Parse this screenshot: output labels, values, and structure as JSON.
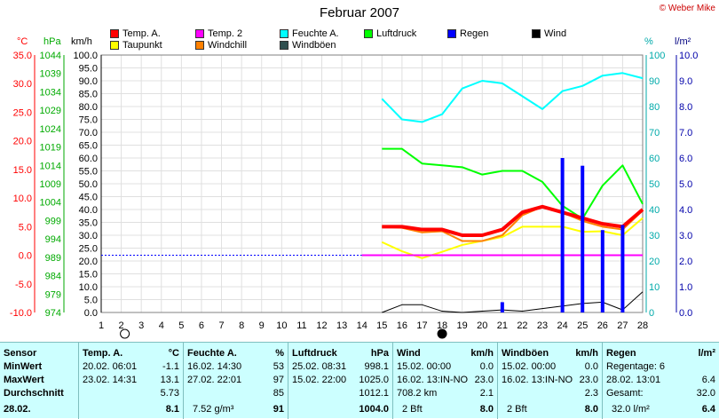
{
  "title": "Februar 2007",
  "copyright": "© Weber Mike",
  "legend": [
    {
      "label": "Temp. A.",
      "color": "#ff0000"
    },
    {
      "label": "Taupunkt",
      "color": "#ffff00"
    },
    {
      "label": "Temp. 2",
      "color": "#ff00ff"
    },
    {
      "label": "Windchill",
      "color": "#ff8000"
    },
    {
      "label": "Feuchte A.",
      "color": "#00ffff"
    },
    {
      "label": "Windböen",
      "color": "#2f4f4f"
    },
    {
      "label": "Luftdruck",
      "color": "#00ff00"
    },
    {
      "label": "Regen",
      "color": "#0000ff"
    },
    {
      "label": "Wind",
      "color": "#000000"
    }
  ],
  "axis_units": {
    "temp": "°C",
    "press": "hPa",
    "wind": "km/h",
    "hum": "%",
    "rain": "l/m²"
  },
  "chart_data": {
    "type": "line",
    "title": "Februar 2007",
    "x": [
      15,
      16,
      17,
      18,
      19,
      20,
      21,
      22,
      23,
      24,
      25,
      26,
      27,
      28
    ],
    "xlim": [
      1,
      28
    ],
    "x_ticks": [
      1,
      2,
      3,
      4,
      5,
      6,
      7,
      8,
      9,
      10,
      11,
      12,
      13,
      14,
      15,
      16,
      17,
      18,
      19,
      20,
      21,
      22,
      23,
      24,
      25,
      26,
      27,
      28
    ],
    "axes": {
      "temp": {
        "unit": "°C",
        "lim": [
          -10,
          35
        ],
        "ticks": [
          "35.0",
          "30.0",
          "25.0",
          "20.0",
          "15.0",
          "10.0",
          "5.0",
          "0.0",
          "-5.0",
          "-10.0"
        ],
        "color": "#ff0000"
      },
      "press": {
        "unit": "hPa",
        "lim": [
          974,
          1044
        ],
        "ticks": [
          "1044",
          "1039",
          "1034",
          "1029",
          "1024",
          "1019",
          "1014",
          "1009",
          "1004",
          "999",
          "994",
          "989",
          "984",
          "979",
          "974"
        ],
        "color": "#00aa00"
      },
      "wind": {
        "unit": "km/h",
        "lim": [
          0,
          100
        ],
        "ticks": [
          "100.0",
          "95.0",
          "90.0",
          "85.0",
          "80.0",
          "75.0",
          "70.0",
          "65.0",
          "60.0",
          "55.0",
          "50.0",
          "45.0",
          "40.0",
          "35.0",
          "30.0",
          "25.0",
          "20.0",
          "15.0",
          "10.0",
          "5.0",
          "0.0"
        ],
        "color": "#000000"
      },
      "hum": {
        "unit": "%",
        "lim": [
          0,
          100
        ],
        "ticks": [
          "100",
          "90",
          "80",
          "70",
          "60",
          "50",
          "40",
          "30",
          "20",
          "10",
          "0"
        ],
        "color": "#00aaaa"
      },
      "rain": {
        "unit": "l/m²",
        "lim": [
          0,
          10
        ],
        "ticks": [
          "10.0",
          "9.0",
          "8.0",
          "7.0",
          "6.0",
          "5.0",
          "4.0",
          "3.0",
          "2.0",
          "1.0",
          "0.0"
        ],
        "color": "#0000aa"
      }
    },
    "series": [
      {
        "name": "Feuchte A.",
        "axis": "hum",
        "color": "#00ffff",
        "values": [
          83,
          75,
          74,
          77,
          87,
          90,
          89,
          84,
          79,
          86,
          88,
          92,
          93,
          91
        ]
      },
      {
        "name": "Luftdruck",
        "axis": "press",
        "color": "#00ff00",
        "values": [
          1018.5,
          1018.5,
          1014.5,
          1014,
          1013.5,
          1011.5,
          1012.5,
          1012.5,
          1009.5,
          1003,
          999.5,
          1008.5,
          1014,
          1003.5
        ]
      },
      {
        "name": "Taupunkt",
        "axis": "temp",
        "color": "#ffff00",
        "values": [
          2.3,
          0.7,
          -0.5,
          0.6,
          1.8,
          2.5,
          3.2,
          5,
          5,
          5,
          4.1,
          4.2,
          3.5,
          6.5
        ]
      },
      {
        "name": "Windchill",
        "axis": "temp",
        "color": "#ff8000",
        "values": [
          5,
          4.8,
          4,
          4.2,
          2.5,
          2.5,
          3.5,
          7,
          8.5,
          7.5,
          6,
          5,
          4.5,
          7.8
        ]
      },
      {
        "name": "Temp. A.",
        "axis": "temp",
        "color": "#ff0000",
        "values": [
          5,
          5,
          4.5,
          4.5,
          3.5,
          3.5,
          4.5,
          7.5,
          8.5,
          7.5,
          6.5,
          5.5,
          5,
          8
        ]
      },
      {
        "name": "Temp. 2",
        "axis": "temp",
        "color": "#ff00ff",
        "values": [
          0,
          0,
          0,
          0,
          0,
          0,
          0,
          0,
          0,
          0,
          0,
          0,
          0,
          0
        ]
      },
      {
        "name": "Wind",
        "axis": "wind",
        "color": "#000000",
        "values": [
          0,
          3,
          3,
          0.5,
          0,
          0.5,
          1,
          0.5,
          1.5,
          2.5,
          3.5,
          4,
          1,
          8
        ]
      },
      {
        "name": "Regen",
        "axis": "rain",
        "type": "bar",
        "color": "#0000ff",
        "x": [
          21,
          24,
          25,
          26,
          27
        ],
        "values": [
          0.4,
          6,
          5.7,
          3.2,
          3.4
        ]
      }
    ],
    "reference_line": {
      "axis": "temp",
      "value": 0,
      "x_range": [
        1,
        14
      ],
      "style": "dotted",
      "color": "#0000ff"
    },
    "markers": [
      {
        "x": 2,
        "symbol": "empty-circle"
      },
      {
        "x": 18,
        "symbol": "filled-circle"
      }
    ]
  },
  "table": {
    "rows": [
      "Sensor",
      "MinWert",
      "MaxWert",
      "Durchschnitt",
      "28.02."
    ],
    "temp": {
      "header": "Temp. A.",
      "unit": "°C",
      "min_time": "20.02.  06:01",
      "min": "-1.1",
      "max_time": "23.02.  14:31",
      "max": "13.1",
      "avg": "5.73",
      "current": "8.1"
    },
    "feuchte": {
      "header": "Feuchte A.",
      "unit": "%",
      "min_time": "16.02.  14:30",
      "min": "53",
      "max_time": "27.02.  22:01",
      "max": "97",
      "avg": "85",
      "current_abs": "7.52 g/m³",
      "current": "91"
    },
    "luftdruck": {
      "header": "Luftdruck",
      "unit": "hPa",
      "min_time": "25.02.  08:31",
      "min": "998.1",
      "max_time": "15.02.  22:00",
      "max": "1025.0",
      "avg": "1012.1",
      "current": "1004.0"
    },
    "wind": {
      "header": "Wind",
      "unit": "km/h",
      "min_time": "15.02.  00:00",
      "min": "0.0",
      "max_time": "16.02.  13:IN-NO",
      "max": "23.0",
      "avg_label": "708.2 km",
      "avg": "2.1",
      "current_bft": "2 Bft",
      "current": "8.0"
    },
    "windboeen": {
      "header": "Windböen",
      "unit": "km/h",
      "min_time": "15.02.  00:00",
      "min": "0.0",
      "max_time": "16.02.  13:IN-NO",
      "max": "23.0",
      "avg": "2.3",
      "current_bft": "2 Bft",
      "current": "8.0"
    },
    "regen": {
      "header": "Regen",
      "unit": "l/m²",
      "line1": "Regentage: 6",
      "line2_time": "28.02.  13:01",
      "line2": "6.4",
      "line3_label": "Gesamt:",
      "line3": "32.0",
      "current_label": "32.0 l/m²",
      "current": "6.4"
    }
  }
}
